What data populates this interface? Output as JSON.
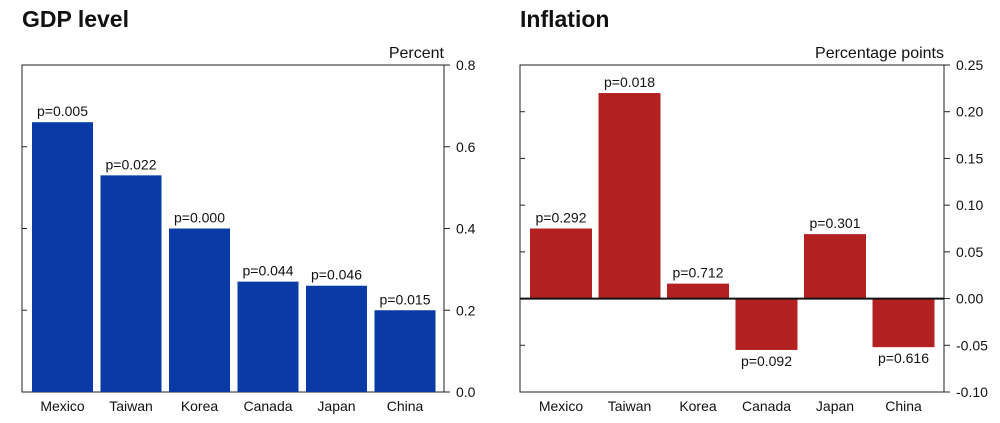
{
  "chart_data": [
    {
      "type": "bar",
      "title": "GDP level",
      "ylabel": "Percent",
      "categories": [
        "Mexico",
        "Taiwan",
        "Korea",
        "Canada",
        "Japan",
        "China"
      ],
      "values": [
        0.66,
        0.53,
        0.4,
        0.27,
        0.26,
        0.2
      ],
      "annotations": [
        "p=0.005",
        "p=0.022",
        "p=0.000",
        "p=0.044",
        "p=0.046",
        "p=0.015"
      ],
      "ylim": [
        0.0,
        0.8
      ],
      "yticks": [
        "0.0",
        "0.2",
        "0.4",
        "0.6",
        "0.8"
      ],
      "ytick_values": [
        0.0,
        0.2,
        0.4,
        0.6,
        0.8
      ],
      "y_axis_side": "right",
      "grid": false,
      "color": "#0a3aa5"
    },
    {
      "type": "bar",
      "title": "Inflation",
      "ylabel": "Percentage points",
      "categories": [
        "Mexico",
        "Taiwan",
        "Korea",
        "Canada",
        "Japan",
        "China"
      ],
      "values": [
        0.075,
        0.22,
        0.016,
        -0.055,
        0.069,
        -0.052
      ],
      "annotations": [
        "p=0.292",
        "p=0.018",
        "p=0.712",
        "p=0.092",
        "p=0.301",
        "p=0.616"
      ],
      "ylim": [
        -0.1,
        0.25
      ],
      "yticks": [
        "-0.10",
        "-0.05",
        "0.00",
        "0.05",
        "0.10",
        "0.15",
        "0.20",
        "0.25"
      ],
      "ytick_values": [
        -0.1,
        -0.05,
        0.0,
        0.05,
        0.1,
        0.15,
        0.2,
        0.25
      ],
      "y_axis_side": "right",
      "grid": false,
      "zero_line": true,
      "color": "#b32020"
    }
  ]
}
